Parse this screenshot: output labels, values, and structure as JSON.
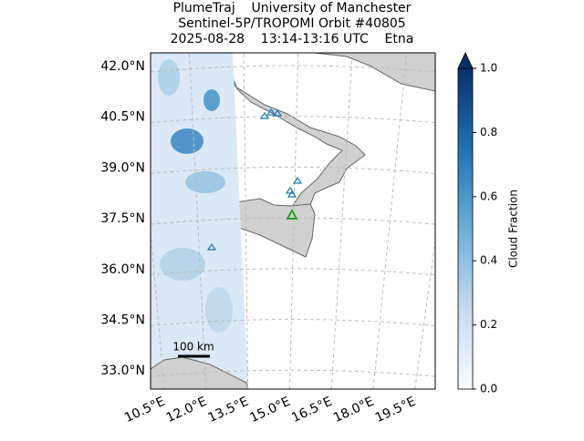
{
  "title_lines": [
    "PlumeTraj    University of Manchester",
    "Sentinel-5P/TROPOMI Orbit #40805",
    "2025-08-28    13:14-13:16 UTC    Etna"
  ],
  "lat_ticks": [
    {
      "value": 42.0,
      "label": "42.0°N"
    },
    {
      "value": 40.5,
      "label": "40.5°N"
    },
    {
      "value": 39.0,
      "label": "39.0°N"
    },
    {
      "value": 37.5,
      "label": "37.5°N"
    },
    {
      "value": 36.0,
      "label": "36.0°N"
    },
    {
      "value": 34.5,
      "label": "34.5°N"
    },
    {
      "value": 33.0,
      "label": "33.0°N"
    }
  ],
  "lon_ticks": [
    {
      "value": 10.5,
      "label": "10.5°E"
    },
    {
      "value": 12.0,
      "label": "12.0°E"
    },
    {
      "value": 13.5,
      "label": "13.5°E"
    },
    {
      "value": 15.0,
      "label": "15.0°E"
    },
    {
      "value": 16.5,
      "label": "16.5°E"
    },
    {
      "value": 18.0,
      "label": "18.0°E"
    },
    {
      "value": 19.5,
      "label": "19.5°E"
    }
  ],
  "colorbar": {
    "label": "Cloud Fraction",
    "lim": [
      0,
      1
    ],
    "ticks": [
      {
        "value": 0,
        "label": "0.0"
      },
      {
        "value": 0.2,
        "label": "0.2"
      },
      {
        "value": 0.4,
        "label": "0.4"
      },
      {
        "value": 0.6,
        "label": "0.6"
      },
      {
        "value": 0.8,
        "label": "0.8"
      },
      {
        "value": 1,
        "label": "1.0"
      }
    ]
  },
  "scale_bar": "100 km"
}
